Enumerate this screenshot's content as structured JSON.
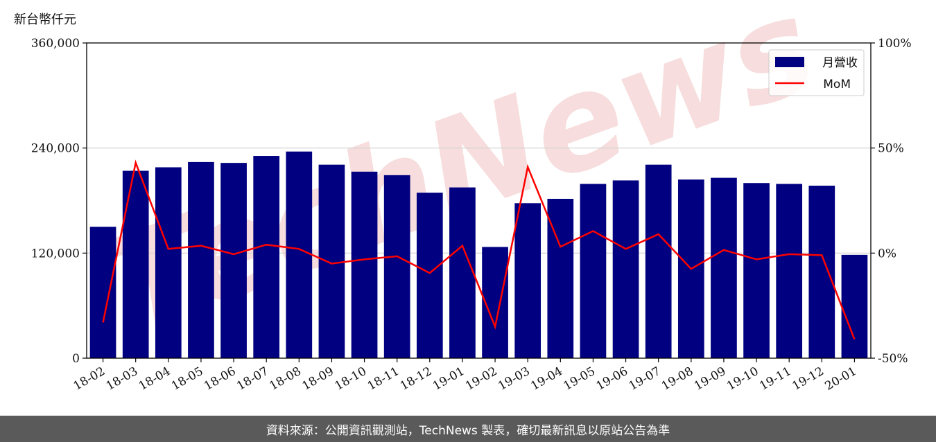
{
  "unit_label": "新台幣仟元",
  "footer_text": "資料來源：公開資訊觀測站，TechNews 製表，確切最新訊息以原站公告為準",
  "watermark_text": "TechNews",
  "colors": {
    "bar": "#000080",
    "line": "#ff0000",
    "watermark": "#f2c7c7"
  },
  "chart_data": {
    "type": "bar",
    "categories": [
      "18-02",
      "18-03",
      "18-04",
      "18-05",
      "18-06",
      "18-07",
      "18-08",
      "18-09",
      "18-10",
      "18-11",
      "18-12",
      "19-01",
      "19-02",
      "19-03",
      "19-04",
      "19-05",
      "19-06",
      "19-07",
      "19-08",
      "19-09",
      "19-10",
      "19-11",
      "19-12",
      "20-01"
    ],
    "series": [
      {
        "name": "月營收",
        "type": "bar",
        "axis": "left",
        "values": [
          150000,
          214000,
          218000,
          224000,
          223000,
          231000,
          236000,
          221000,
          213000,
          209000,
          189000,
          195000,
          127000,
          177000,
          182000,
          199000,
          203000,
          221000,
          204000,
          206000,
          200000,
          199000,
          197000,
          118000
        ]
      },
      {
        "name": "MoM",
        "type": "line",
        "axis": "right",
        "values": [
          -33,
          43,
          2,
          3.5,
          -0.5,
          4,
          2,
          -5,
          -3,
          -1.5,
          -9.5,
          3.5,
          -35,
          41,
          3,
          10.5,
          2,
          9,
          -7.5,
          1.5,
          -3,
          -0.5,
          -1,
          -41
        ]
      }
    ],
    "y_left": {
      "ylim": [
        0,
        360000
      ],
      "ticks": [
        "0",
        "120,000",
        "240,000",
        "360,000"
      ],
      "tick_values": [
        0,
        120000,
        240000,
        360000
      ]
    },
    "y_right": {
      "ylim": [
        -50,
        100
      ],
      "ticks": [
        "-50%",
        "0%",
        "50%",
        "100%"
      ],
      "tick_values": [
        -50,
        0,
        50,
        100
      ]
    },
    "grid": "horizontal",
    "legend": {
      "placement": "top-right",
      "entries": [
        "月營收",
        "MoM"
      ]
    }
  }
}
